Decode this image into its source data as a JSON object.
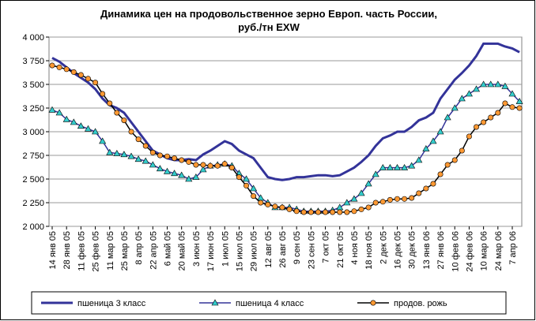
{
  "chart_data": {
    "type": "line",
    "title": [
      "Динамика цен на продовольственное зерно Европ. часть России,",
      "руб./тн EXW"
    ],
    "categories": [
      "14 янв 05",
      null,
      "28 янв 05",
      null,
      "11 фев 05",
      null,
      "25 фев 05",
      null,
      "11 мар 05",
      null,
      "25 мар 05",
      null,
      "8 апр 05",
      null,
      "22 апр 05",
      null,
      "6 май 05",
      null,
      "20 май 05",
      null,
      "3 июн 05",
      null,
      "17 июн 05",
      null,
      "1 июл 05",
      null,
      "15 июл 05",
      null,
      "29 июл 05",
      null,
      "12 авг 05",
      null,
      "26 авг 05",
      null,
      "9 сен 05",
      null,
      "23 сен 05",
      null,
      "7 окт 05",
      null,
      "21 окт 05",
      null,
      "4 ноя 05",
      null,
      "18 ноя 05",
      null,
      "2 дек 05",
      null,
      "16 дек 05",
      null,
      "30 дек 05",
      null,
      "13 янв 06",
      null,
      "27 янв 06",
      null,
      "10 фев 06",
      null,
      "24 фев 06",
      null,
      "10 мар 06",
      null,
      "24 мар 06",
      null,
      "7 апр 06",
      null
    ],
    "series": [
      {
        "name": "пшеница 3 класс",
        "color": "#333399",
        "marker": "none",
        "values": [
          3780,
          3740,
          3680,
          3620,
          3570,
          3520,
          3450,
          3350,
          3280,
          3250,
          3200,
          3100,
          3000,
          2900,
          2800,
          2760,
          2720,
          2700,
          2700,
          2710,
          2700,
          2760,
          2800,
          2850,
          2900,
          2870,
          2800,
          2760,
          2720,
          2620,
          2520,
          2500,
          2490,
          2500,
          2520,
          2520,
          2530,
          2540,
          2540,
          2530,
          2540,
          2580,
          2620,
          2680,
          2750,
          2850,
          2930,
          2960,
          3000,
          3000,
          3050,
          3120,
          3150,
          3200,
          3350,
          3450,
          3550,
          3620,
          3700,
          3800,
          3930,
          3930,
          3930,
          3900,
          3880,
          3840
        ]
      },
      {
        "name": "пшеница 4 класс",
        "color": "#333399",
        "marker": "triangle",
        "marker_color": "#33cccc",
        "values": [
          3230,
          3200,
          3130,
          3100,
          3060,
          3030,
          3000,
          2900,
          2780,
          2770,
          2760,
          2740,
          2710,
          2690,
          2650,
          2610,
          2580,
          2560,
          2540,
          2500,
          2520,
          2600,
          2640,
          2650,
          2660,
          2640,
          2560,
          2500,
          2400,
          2300,
          2250,
          2200,
          2200,
          2200,
          2180,
          2160,
          2160,
          2160,
          2160,
          2170,
          2200,
          2250,
          2290,
          2350,
          2450,
          2550,
          2620,
          2620,
          2620,
          2620,
          2640,
          2700,
          2820,
          2900,
          3000,
          3150,
          3250,
          3350,
          3400,
          3450,
          3500,
          3500,
          3500,
          3480,
          3400,
          3320
        ]
      },
      {
        "name": "продов. рожь",
        "color": "#000000",
        "marker": "circle",
        "marker_color": "#ff9933",
        "values": [
          3700,
          3680,
          3660,
          3630,
          3600,
          3560,
          3520,
          3400,
          3300,
          3200,
          3120,
          3000,
          2920,
          2850,
          2780,
          2750,
          2740,
          2720,
          2700,
          2680,
          2650,
          2650,
          2640,
          2640,
          2660,
          2620,
          2520,
          2430,
          2320,
          2250,
          2230,
          2210,
          2200,
          2180,
          2160,
          2150,
          2150,
          2150,
          2150,
          2150,
          2150,
          2150,
          2160,
          2180,
          2200,
          2250,
          2260,
          2280,
          2290,
          2290,
          2300,
          2350,
          2400,
          2450,
          2550,
          2650,
          2700,
          2800,
          2950,
          3050,
          3100,
          3150,
          3200,
          3300,
          3260,
          3250
        ]
      }
    ],
    "ylim": [
      2000,
      4000
    ],
    "yticks": [
      {
        "value": 2000,
        "label": "2 000"
      },
      {
        "value": 2250,
        "label": "2 250"
      },
      {
        "value": 2500,
        "label": "2 500"
      },
      {
        "value": 2750,
        "label": "2 750"
      },
      {
        "value": 3000,
        "label": "3 000"
      },
      {
        "value": 3250,
        "label": "3 250"
      },
      {
        "value": 3500,
        "label": "3 500"
      },
      {
        "value": 3750,
        "label": "3 750"
      },
      {
        "value": 4000,
        "label": "4 000"
      }
    ],
    "grid": true,
    "legend": "bottom"
  }
}
